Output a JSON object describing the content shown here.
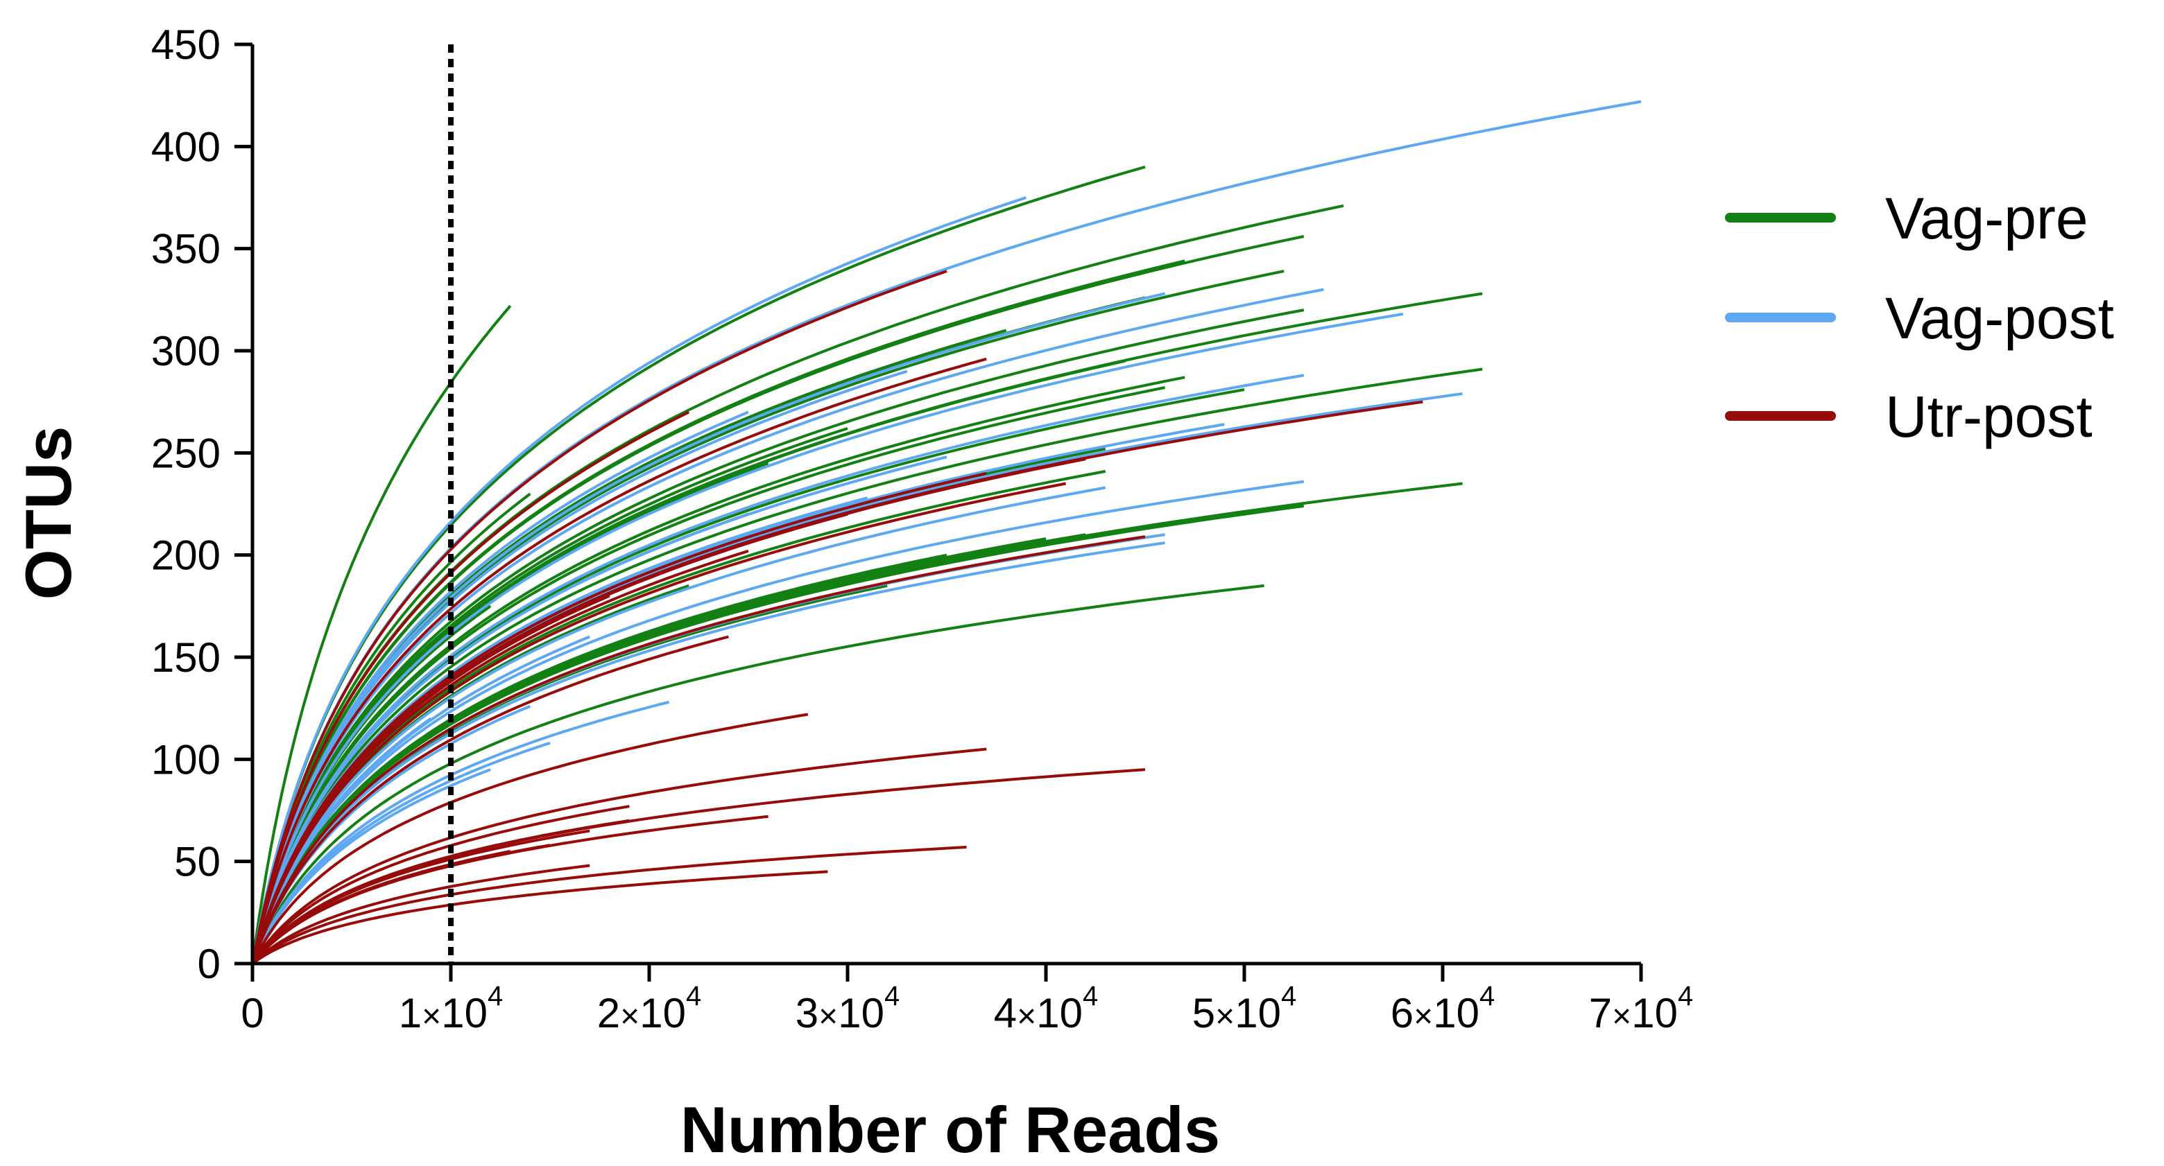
{
  "chart_data": {
    "type": "line",
    "title": "",
    "xlabel": "Number of Reads",
    "ylabel": "OTUs",
    "xlim": [
      0,
      70000
    ],
    "ylim": [
      0,
      450
    ],
    "x_ticks": [
      {
        "value": 0,
        "label": "0"
      },
      {
        "value": 10000,
        "mantissa": "1",
        "times": "×",
        "base": "10",
        "exp": "4"
      },
      {
        "value": 20000,
        "mantissa": "2",
        "times": "×",
        "base": "10",
        "exp": "4"
      },
      {
        "value": 30000,
        "mantissa": "3",
        "times": "×",
        "base": "10",
        "exp": "4"
      },
      {
        "value": 40000,
        "mantissa": "4",
        "times": "×",
        "base": "10",
        "exp": "4"
      },
      {
        "value": 50000,
        "mantissa": "5",
        "times": "×",
        "base": "10",
        "exp": "4"
      },
      {
        "value": 60000,
        "mantissa": "6",
        "times": "×",
        "base": "10",
        "exp": "4"
      },
      {
        "value": 70000,
        "mantissa": "7",
        "times": "×",
        "base": "10",
        "exp": "4"
      }
    ],
    "y_ticks": [
      0,
      50,
      100,
      150,
      200,
      250,
      300,
      350,
      400,
      450
    ],
    "reference_line": {
      "x": 10000,
      "style": "dotted",
      "color": "#000000"
    },
    "legend": {
      "position": "right",
      "entries": [
        {
          "name": "Vag-pre",
          "color": "#128012"
        },
        {
          "name": "Vag-post",
          "color": "#5ea8f2"
        },
        {
          "name": "Utr-post",
          "color": "#980b0b"
        }
      ]
    },
    "curve_model": "rarefaction curves: OTUs rise steeply then level off; each curve given as [max reads, final OTUs]",
    "series": [
      {
        "name": "Vag-pre",
        "color": "#128012",
        "curves": [
          [
            13000,
            322
          ],
          [
            45000,
            390
          ],
          [
            55000,
            371
          ],
          [
            53000,
            356
          ],
          [
            62000,
            328
          ],
          [
            52000,
            339
          ],
          [
            47000,
            344
          ],
          [
            45000,
            326
          ],
          [
            53000,
            320
          ],
          [
            44000,
            295
          ],
          [
            47000,
            287
          ],
          [
            46000,
            282
          ],
          [
            62000,
            291
          ],
          [
            50000,
            281
          ],
          [
            43000,
            252
          ],
          [
            43000,
            241
          ],
          [
            61000,
            235
          ],
          [
            53000,
            224
          ],
          [
            42000,
            210
          ],
          [
            51000,
            185
          ],
          [
            32000,
            185
          ],
          [
            40000,
            208
          ],
          [
            25000,
            220
          ],
          [
            14000,
            230
          ],
          [
            35000,
            200
          ],
          [
            22000,
            185
          ],
          [
            12000,
            175
          ],
          [
            30000,
            262
          ],
          [
            38000,
            310
          ],
          [
            26000,
            245
          ]
        ]
      },
      {
        "name": "Vag-post",
        "color": "#5ea8f2",
        "curves": [
          [
            70000,
            422
          ],
          [
            39000,
            375
          ],
          [
            58000,
            318
          ],
          [
            54000,
            330
          ],
          [
            46000,
            328
          ],
          [
            61000,
            279
          ],
          [
            49000,
            264
          ],
          [
            53000,
            288
          ],
          [
            43000,
            233
          ],
          [
            53000,
            236
          ],
          [
            46000,
            210
          ],
          [
            46000,
            206
          ],
          [
            35000,
            248
          ],
          [
            28000,
            217
          ],
          [
            21000,
            128
          ],
          [
            14000,
            126
          ],
          [
            15000,
            108
          ],
          [
            12000,
            95
          ],
          [
            25000,
            270
          ],
          [
            20000,
            190
          ],
          [
            31000,
            228
          ],
          [
            17000,
            160
          ],
          [
            9000,
            120
          ],
          [
            33000,
            290
          ]
        ]
      },
      {
        "name": "Utr-post",
        "color": "#980b0b",
        "curves": [
          [
            35000,
            339
          ],
          [
            37000,
            296
          ],
          [
            59000,
            275
          ],
          [
            42000,
            247
          ],
          [
            37000,
            240
          ],
          [
            41000,
            235
          ],
          [
            45000,
            209
          ],
          [
            25000,
            202
          ],
          [
            28000,
            122
          ],
          [
            37000,
            105
          ],
          [
            45000,
            95
          ],
          [
            36000,
            57
          ],
          [
            29000,
            45
          ],
          [
            26000,
            72
          ],
          [
            19000,
            77
          ],
          [
            19000,
            70
          ],
          [
            17000,
            65
          ],
          [
            15000,
            58
          ],
          [
            17000,
            48
          ],
          [
            13000,
            55
          ],
          [
            22000,
            270
          ],
          [
            18000,
            180
          ],
          [
            30000,
            220
          ],
          [
            24000,
            160
          ]
        ]
      }
    ]
  }
}
